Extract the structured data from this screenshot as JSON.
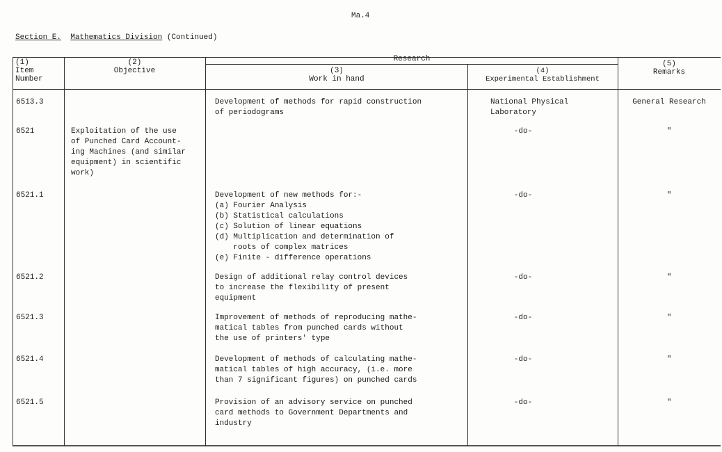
{
  "page_ref": "Ma.4",
  "section": {
    "label": "Section E.",
    "title": "Mathematics Division",
    "suffix": "(Continued)"
  },
  "headers": {
    "col1": {
      "num": "(1)",
      "label": "Item\nNumber"
    },
    "col2": {
      "num": "(2)",
      "label": "Objective"
    },
    "research": "Research",
    "col3": {
      "num": "(3)",
      "label": "Work in hand"
    },
    "col4": {
      "num": "(4)",
      "label": "Experimental Establishment"
    },
    "col5": {
      "num": "(5)",
      "label": "Remarks"
    }
  },
  "rows": [
    {
      "item": "6513.3",
      "objective": "",
      "work": "Development of methods for rapid construction\nof periodograms",
      "establishment": "National Physical\nLaboratory",
      "remarks": "General Research"
    },
    {
      "item": "6521",
      "objective": "Exploitation of the use\nof Punched Card Account-\ning Machines (and similar\nequipment) in scientific\nwork)",
      "work": "",
      "establishment": "-do-",
      "remarks": "\""
    },
    {
      "item": "6521.1",
      "objective": "",
      "work": "Development of new methods for:-\n(a) Fourier Analysis\n(b) Statistical calculations\n(c) Solution of linear equations\n(d) Multiplication and determination of\n    roots of complex matrices\n(e) Finite - difference operations",
      "establishment": "-do-",
      "remarks": "\""
    },
    {
      "item": "6521.2",
      "objective": "",
      "work": "Design of additional relay control devices\nto increase the flexibility of present\nequipment",
      "establishment": "-do-",
      "remarks": "\""
    },
    {
      "item": "6521.3",
      "objective": "",
      "work": "Improvement of methods of reproducing mathe-\nmatical tables from punched cards without\nthe use of printers' type",
      "establishment": "-do-",
      "remarks": "\""
    },
    {
      "item": "6521.4",
      "objective": "",
      "work": "Development of methods of calculating mathe-\nmatical tables of high accuracy, (i.e. more\nthan 7 significant figures) on punched cards",
      "establishment": "-do-",
      "remarks": "\""
    },
    {
      "item": "6521.5",
      "objective": "",
      "work": "Provision of an advisory service on punched\ncard methods to Government Departments and\nindustry",
      "establishment": "-do-",
      "remarks": "\""
    }
  ]
}
